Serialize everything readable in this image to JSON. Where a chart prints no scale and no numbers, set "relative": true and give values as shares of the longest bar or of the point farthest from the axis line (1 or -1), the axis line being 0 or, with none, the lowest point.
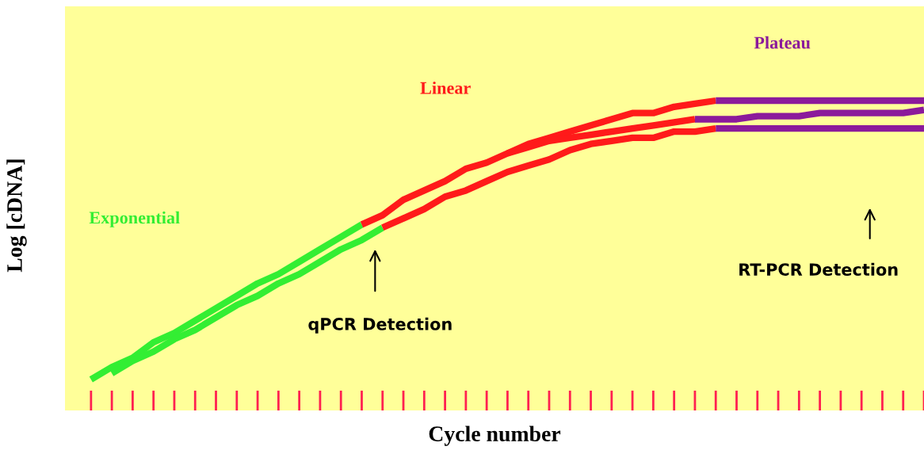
{
  "chart_data": {
    "type": "line",
    "relative": true,
    "xlabel": "Cycle number",
    "ylabel": "Log [cDNA]",
    "grid": false,
    "categories": [
      null,
      null,
      null,
      null,
      null,
      null,
      null,
      null,
      null,
      null,
      null,
      null,
      null,
      null,
      null,
      null,
      null,
      null,
      null,
      null,
      null,
      null,
      null,
      null,
      null,
      null,
      null,
      null,
      null,
      null,
      null,
      null,
      null,
      null,
      null,
      null,
      null,
      null,
      null,
      null,
      null
    ],
    "series": [
      {
        "color": "#33ee33",
        "values": [
          0.1,
          0.14,
          0.17,
          0.22,
          0.25,
          0.29,
          0.33,
          0.37,
          0.41,
          0.44,
          0.48,
          0.52,
          0.56,
          0.6,
          null,
          null,
          null,
          null,
          null,
          null,
          null,
          null,
          null,
          null,
          null,
          null,
          null,
          null,
          null,
          null,
          null,
          null,
          null,
          null,
          null,
          null,
          null,
          null,
          null,
          null,
          null
        ]
      },
      {
        "color": "#33ee33",
        "values": [
          null,
          0.12,
          0.16,
          0.19,
          0.23,
          0.26,
          0.3,
          0.34,
          0.37,
          0.41,
          0.44,
          0.48,
          0.52,
          0.55,
          0.59,
          null,
          null,
          null,
          null,
          null,
          null,
          null,
          null,
          null,
          null,
          null,
          null,
          null,
          null,
          null,
          null,
          null,
          null,
          null,
          null,
          null,
          null,
          null,
          null,
          null,
          null
        ]
      },
      {
        "color": "#ff1a1a",
        "values": [
          null,
          null,
          null,
          null,
          null,
          null,
          null,
          null,
          null,
          null,
          null,
          null,
          null,
          0.6,
          0.63,
          0.68,
          0.71,
          0.74,
          0.78,
          0.8,
          0.83,
          0.86,
          0.88,
          0.9,
          0.92,
          0.94,
          0.96,
          0.96,
          0.98,
          0.99,
          1.0,
          null,
          null,
          null,
          null,
          null,
          null,
          null,
          null,
          null,
          null
        ]
      },
      {
        "color": "#ff1a1a",
        "values": [
          null,
          null,
          null,
          null,
          null,
          null,
          null,
          null,
          null,
          null,
          null,
          null,
          null,
          null,
          null,
          null,
          null,
          null,
          null,
          null,
          0.83,
          0.85,
          0.87,
          0.88,
          0.89,
          0.9,
          0.91,
          0.92,
          0.93,
          0.94,
          null,
          null,
          null,
          null,
          null,
          null,
          null,
          null,
          null,
          null,
          null
        ]
      },
      {
        "color": "#ff1a1a",
        "values": [
          null,
          null,
          null,
          null,
          null,
          null,
          null,
          null,
          null,
          null,
          null,
          null,
          null,
          null,
          0.59,
          0.62,
          0.65,
          0.69,
          0.71,
          0.74,
          0.77,
          0.79,
          0.81,
          0.84,
          0.86,
          0.87,
          0.88,
          0.88,
          0.9,
          0.9,
          0.91,
          null,
          null,
          null,
          null,
          null,
          null,
          null,
          null,
          null,
          null
        ]
      },
      {
        "color": "#8b1a9b",
        "values": [
          null,
          null,
          null,
          null,
          null,
          null,
          null,
          null,
          null,
          null,
          null,
          null,
          null,
          null,
          null,
          null,
          null,
          null,
          null,
          null,
          null,
          null,
          null,
          null,
          null,
          null,
          null,
          null,
          null,
          null,
          1.0,
          1.0,
          1.0,
          1.0,
          1.0,
          1.0,
          1.0,
          1.0,
          1.0,
          1.0,
          1.0
        ]
      },
      {
        "color": "#8b1a9b",
        "values": [
          null,
          null,
          null,
          null,
          null,
          null,
          null,
          null,
          null,
          null,
          null,
          null,
          null,
          null,
          null,
          null,
          null,
          null,
          null,
          null,
          null,
          null,
          null,
          null,
          null,
          null,
          null,
          null,
          null,
          0.94,
          0.94,
          0.94,
          0.95,
          0.95,
          0.95,
          0.96,
          0.96,
          0.96,
          0.96,
          0.96,
          0.97
        ]
      },
      {
        "color": "#8b1a9b",
        "values": [
          null,
          null,
          null,
          null,
          null,
          null,
          null,
          null,
          null,
          null,
          null,
          null,
          null,
          null,
          null,
          null,
          null,
          null,
          null,
          null,
          null,
          null,
          null,
          null,
          null,
          null,
          null,
          null,
          null,
          null,
          0.91,
          0.91,
          0.91,
          0.91,
          0.91,
          0.91,
          0.91,
          0.91,
          0.91,
          0.91,
          0.91
        ]
      }
    ],
    "annotations": [
      "Exponential",
      "Linear",
      "Plateau",
      "qPCR Detection",
      "RT-PCR Detection"
    ]
  }
}
